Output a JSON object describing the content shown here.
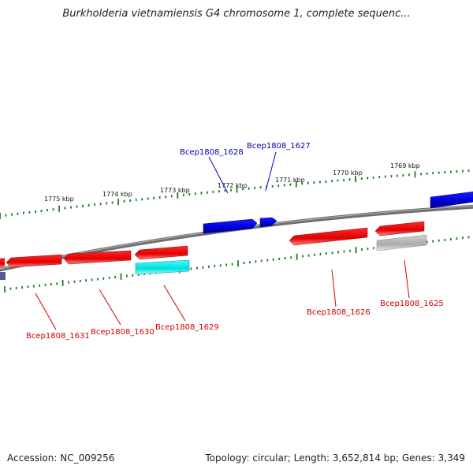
{
  "title": "Burkholderia vietnamiensis G4 chromosome 1, complete sequenc...",
  "accession_text": "Accession: NC_009256",
  "summary_text": "Topology: circular; Length: 3,652,814 bp; Genes: 3,349",
  "colors": {
    "backbone": "#7a7a7a",
    "tick": "#1f7a1f",
    "forward_gene": "#0000ee",
    "reverse_gene": "#ee1111",
    "cyan_feature": "#22dddd",
    "grey_feature": "#bbbbbb",
    "forward_label": "#0000aa",
    "reverse_label": "#cc0000"
  },
  "scale_labels": [
    "1775 kbp",
    "1774 kbp",
    "1773 kbp",
    "1772 kbp",
    "1771 kbp",
    "1770 kbp",
    "1769 kbp"
  ],
  "gene_labels": {
    "top": [
      "Bcep1808_1628",
      "Bcep1808_1627"
    ],
    "bottom": [
      "Bcep1808_1631",
      "Bcep1808_1630",
      "Bcep1808_1629",
      "Bcep1808_1626",
      "Bcep1808_1625"
    ]
  }
}
